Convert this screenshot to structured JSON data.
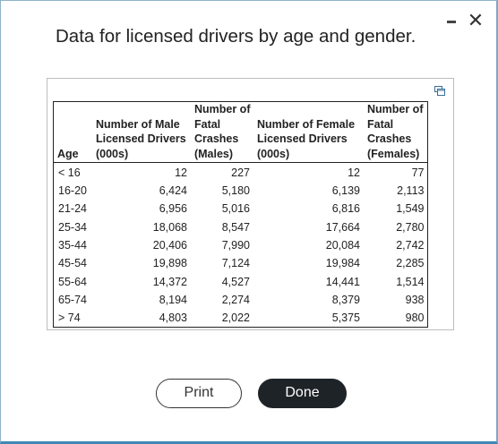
{
  "dialog": {
    "title": "Data for licensed drivers by age and gender.",
    "minimize_icon": "minimize-icon",
    "close_label": "✕"
  },
  "table": {
    "expand_icon": "expand-icon",
    "headers": {
      "age": "Age",
      "male_drivers": "Number of Male\nLicensed Drivers\n(000s)",
      "male_fatal": "Number of\nFatal\nCrashes\n(Males)",
      "female_drivers": "Number of Female\nLicensed Drivers\n(000s)",
      "female_fatal": "Number of\nFatal\nCrashes\n(Females)"
    },
    "rows": [
      {
        "age": "< 16",
        "male_drivers": "12",
        "male_fatal": "227",
        "female_drivers": "12",
        "female_fatal": "77"
      },
      {
        "age": "16-20",
        "male_drivers": "6,424",
        "male_fatal": "5,180",
        "female_drivers": "6,139",
        "female_fatal": "2,113"
      },
      {
        "age": "21-24",
        "male_drivers": "6,956",
        "male_fatal": "5,016",
        "female_drivers": "6,816",
        "female_fatal": "1,549"
      },
      {
        "age": "25-34",
        "male_drivers": "18,068",
        "male_fatal": "8,547",
        "female_drivers": "17,664",
        "female_fatal": "2,780"
      },
      {
        "age": "35-44",
        "male_drivers": "20,406",
        "male_fatal": "7,990",
        "female_drivers": "20,084",
        "female_fatal": "2,742"
      },
      {
        "age": "45-54",
        "male_drivers": "19,898",
        "male_fatal": "7,124",
        "female_drivers": "19,984",
        "female_fatal": "2,285"
      },
      {
        "age": "55-64",
        "male_drivers": "14,372",
        "male_fatal": "4,527",
        "female_drivers": "14,441",
        "female_fatal": "1,514"
      },
      {
        "age": "65-74",
        "male_drivers": "8,194",
        "male_fatal": "2,274",
        "female_drivers": "8,379",
        "female_fatal": "938"
      },
      {
        "age": "> 74",
        "male_drivers": "4,803",
        "male_fatal": "2,022",
        "female_drivers": "5,375",
        "female_fatal": "980"
      }
    ]
  },
  "buttons": {
    "print_label": "Print",
    "done_label": "Done"
  }
}
